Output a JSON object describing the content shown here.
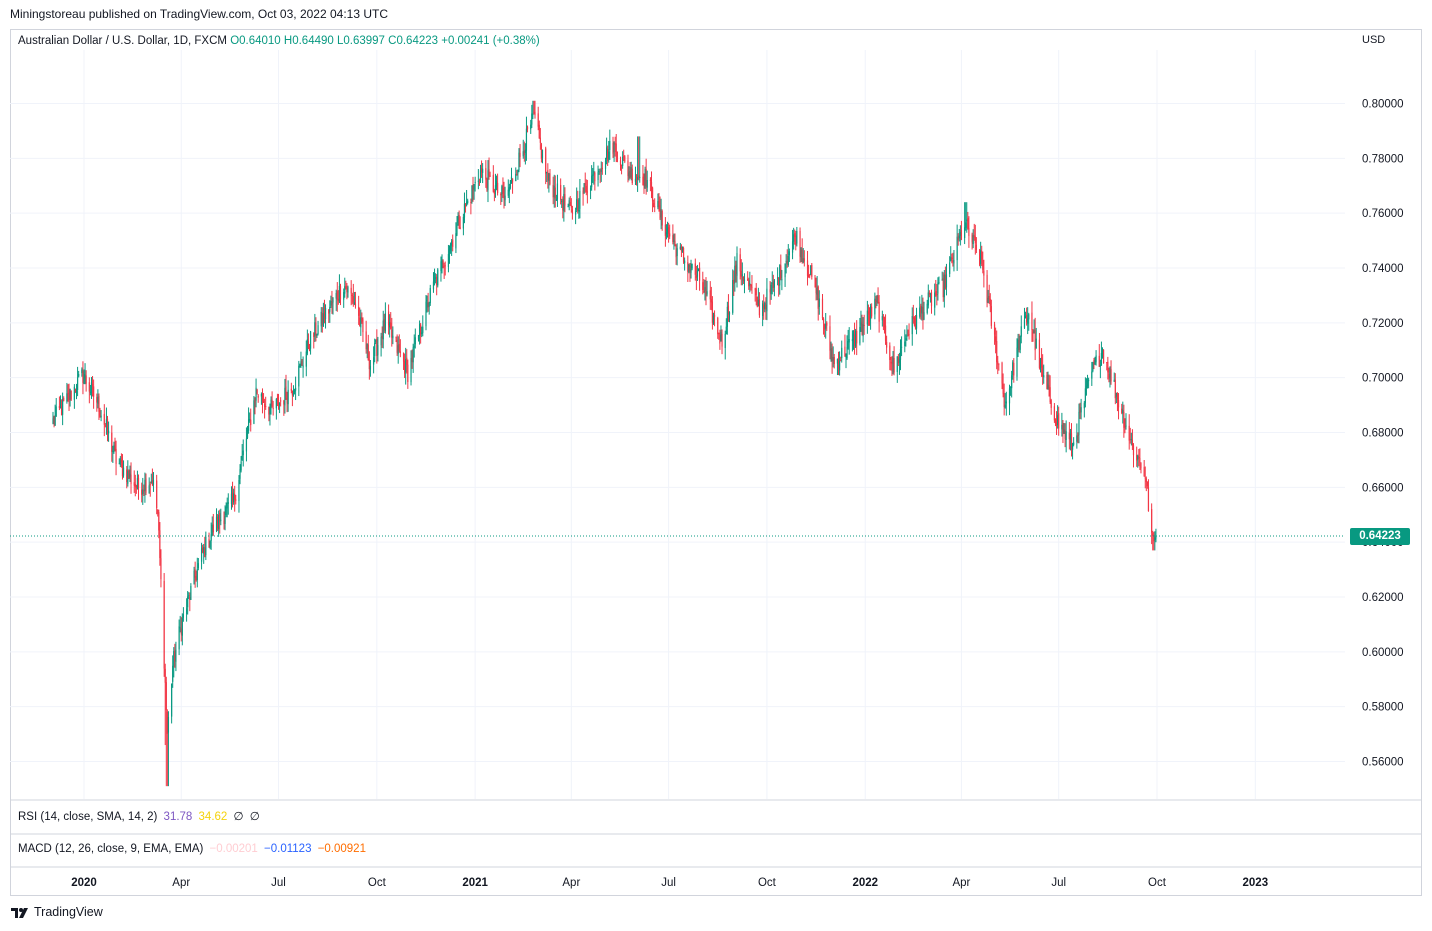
{
  "header": {
    "published_text": "Miningstoreau published on TradingView.com, Oct 03, 2022 04:13 UTC"
  },
  "legend": {
    "symbol": "Australian Dollar / U.S. Dollar, 1D, FXCM",
    "open": "O0.64010",
    "high": "H0.64490",
    "low": "L0.63997",
    "close": "C0.64223",
    "change": "+0.00241 (+0.38%)",
    "currency": "USD"
  },
  "last_price": "0.64223",
  "indicators": {
    "rsi": {
      "label": "RSI (14, close, SMA, 14, 2)",
      "v1": "31.78",
      "v2": "34.62",
      "v3": "∅",
      "v4": "∅",
      "c1": "#7e57c2",
      "c2": "#f5d20b",
      "c3": "#131722",
      "c4": "#131722"
    },
    "macd": {
      "label": "MACD (12, 26, close, 9, EMA, EMA)",
      "v1": "−0.00201",
      "v2": "−0.01123",
      "v3": "−0.00921",
      "c1": "#ffcdd2",
      "c2": "#2962ff",
      "c3": "#ff6d00"
    }
  },
  "footer": {
    "brand": "TradingView"
  },
  "colors": {
    "up": "#089981",
    "down": "#f23645",
    "grid": "#f0f3fa",
    "price_line": "#089981"
  },
  "chart_data": {
    "type": "candlestick",
    "title": "Australian Dollar / U.S. Dollar, 1D, FXCM",
    "x_tick_labels": [
      "2020",
      "Apr",
      "Jul",
      "Oct",
      "2021",
      "Apr",
      "Jul",
      "Oct",
      "2022",
      "Apr",
      "Jul",
      "Oct",
      "2023"
    ],
    "y_tick_labels": [
      "0.80000",
      "0.78000",
      "0.76000",
      "0.74000",
      "0.72000",
      "0.70000",
      "0.68000",
      "0.66000",
      "0.64000",
      "0.62000",
      "0.60000",
      "0.58000",
      "0.56000"
    ],
    "ylim": [
      0.548,
      0.822
    ],
    "start_date": "2019-12-03",
    "last_date": "2022-09-30",
    "close_anchors": [
      [
        "2019-12-03",
        0.684
      ],
      [
        "2019-12-13",
        0.69
      ],
      [
        "2019-12-31",
        0.701
      ],
      [
        "2020-01-15",
        0.69
      ],
      [
        "2020-01-31",
        0.67
      ],
      [
        "2020-02-20",
        0.66
      ],
      [
        "2020-03-05",
        0.663
      ],
      [
        "2020-03-10",
        0.65
      ],
      [
        "2020-03-13",
        0.625
      ],
      [
        "2020-03-19",
        0.57
      ],
      [
        "2020-03-24",
        0.595
      ],
      [
        "2020-04-01",
        0.61
      ],
      [
        "2020-04-20",
        0.635
      ],
      [
        "2020-05-01",
        0.645
      ],
      [
        "2020-05-20",
        0.655
      ],
      [
        "2020-06-10",
        0.695
      ],
      [
        "2020-06-25",
        0.688
      ],
      [
        "2020-07-15",
        0.697
      ],
      [
        "2020-07-31",
        0.714
      ],
      [
        "2020-08-31",
        0.734
      ],
      [
        "2020-09-10",
        0.728
      ],
      [
        "2020-09-25",
        0.705
      ],
      [
        "2020-10-09",
        0.72
      ],
      [
        "2020-10-30",
        0.702
      ],
      [
        "2020-11-20",
        0.73
      ],
      [
        "2020-12-15",
        0.755
      ],
      [
        "2021-01-06",
        0.775
      ],
      [
        "2021-01-29",
        0.765
      ],
      [
        "2021-02-25",
        0.795
      ],
      [
        "2021-03-10",
        0.772
      ],
      [
        "2021-04-01",
        0.76
      ],
      [
        "2021-04-20",
        0.773
      ],
      [
        "2021-05-10",
        0.785
      ],
      [
        "2021-05-25",
        0.775
      ],
      [
        "2021-06-10",
        0.773
      ],
      [
        "2021-06-25",
        0.757
      ],
      [
        "2021-07-10",
        0.746
      ],
      [
        "2021-07-31",
        0.735
      ],
      [
        "2021-08-20",
        0.713
      ],
      [
        "2021-09-03",
        0.742
      ],
      [
        "2021-09-25",
        0.725
      ],
      [
        "2021-10-10",
        0.735
      ],
      [
        "2021-10-28",
        0.752
      ],
      [
        "2021-11-15",
        0.733
      ],
      [
        "2021-12-03",
        0.705
      ],
      [
        "2021-12-20",
        0.713
      ],
      [
        "2022-01-12",
        0.727
      ],
      [
        "2022-01-28",
        0.703
      ],
      [
        "2022-02-10",
        0.717
      ],
      [
        "2022-02-28",
        0.727
      ],
      [
        "2022-03-15",
        0.733
      ],
      [
        "2022-04-04",
        0.756
      ],
      [
        "2022-04-20",
        0.742
      ],
      [
        "2022-05-12",
        0.69
      ],
      [
        "2022-05-25",
        0.713
      ],
      [
        "2022-06-03",
        0.724
      ],
      [
        "2022-06-16",
        0.7
      ],
      [
        "2022-07-01",
        0.683
      ],
      [
        "2022-07-14",
        0.675
      ],
      [
        "2022-08-01",
        0.702
      ],
      [
        "2022-08-11",
        0.71
      ],
      [
        "2022-08-25",
        0.693
      ],
      [
        "2022-09-08",
        0.675
      ],
      [
        "2022-09-20",
        0.665
      ],
      [
        "2022-09-27",
        0.639
      ],
      [
        "2022-09-30",
        0.64223
      ]
    ],
    "extreme_wicks": [
      [
        "2020-03-19",
        0.551
      ],
      [
        "2020-03-18",
        0.566
      ],
      [
        "2021-02-25",
        0.801
      ],
      [
        "2021-06-03",
        0.788
      ],
      [
        "2022-04-05",
        0.764
      ],
      [
        "2020-01-01",
        0.703
      ],
      [
        "2022-09-28",
        0.637
      ]
    ]
  }
}
